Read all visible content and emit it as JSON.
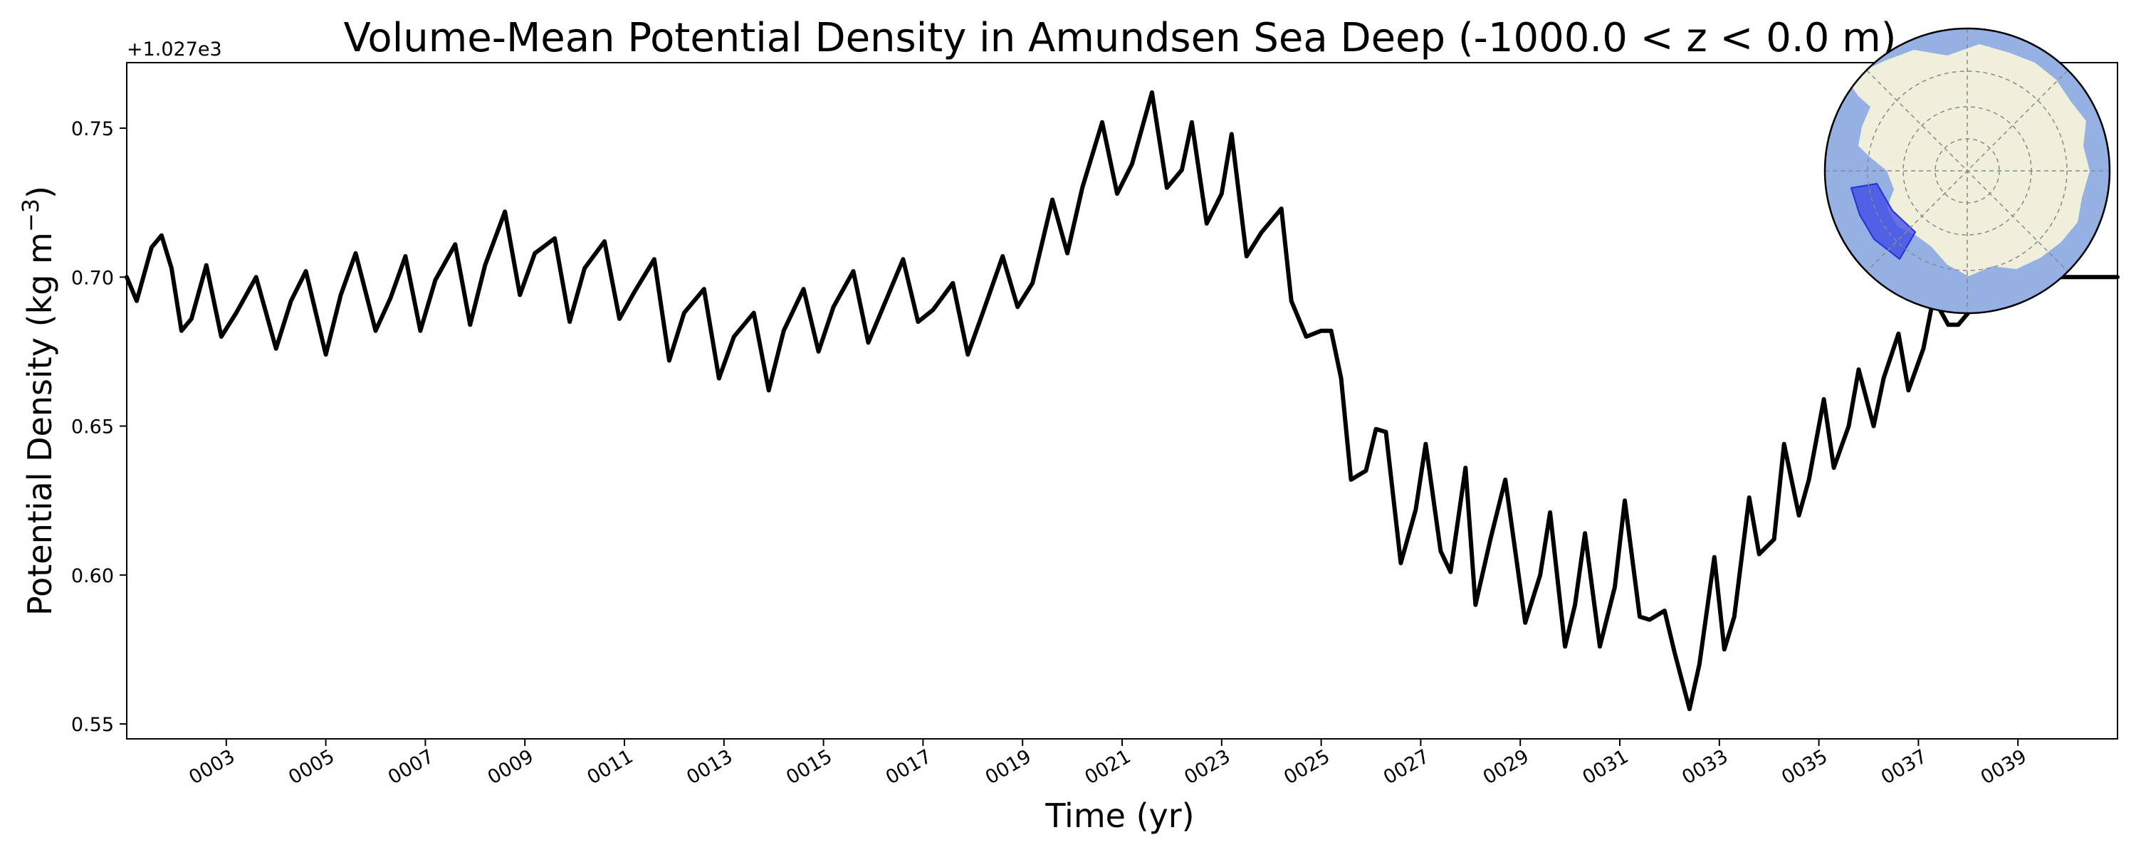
{
  "chart_data": {
    "type": "line",
    "title": "Volume-Mean Potential Density in Amundsen Sea Deep (-1000.0 < z < 0.0 m)",
    "xlabel": "Time (yr)",
    "ylabel_base": "Potential Density (kg m",
    "ylabel_exponent": "−3",
    "ylabel_close": ")",
    "y_offset_label": "+1.027e3",
    "xlim": [
      1.0,
      41.0
    ],
    "ylim": [
      0.545,
      0.772
    ],
    "x_ticks": [
      {
        "value": 3,
        "label": "0003"
      },
      {
        "value": 5,
        "label": "0005"
      },
      {
        "value": 7,
        "label": "0007"
      },
      {
        "value": 9,
        "label": "0009"
      },
      {
        "value": 11,
        "label": "0011"
      },
      {
        "value": 13,
        "label": "0013"
      },
      {
        "value": 15,
        "label": "0015"
      },
      {
        "value": 17,
        "label": "0017"
      },
      {
        "value": 19,
        "label": "0019"
      },
      {
        "value": 21,
        "label": "0021"
      },
      {
        "value": 23,
        "label": "0023"
      },
      {
        "value": 25,
        "label": "0025"
      },
      {
        "value": 27,
        "label": "0027"
      },
      {
        "value": 29,
        "label": "0029"
      },
      {
        "value": 31,
        "label": "0031"
      },
      {
        "value": 33,
        "label": "0033"
      },
      {
        "value": 35,
        "label": "0035"
      },
      {
        "value": 37,
        "label": "0037"
      },
      {
        "value": 39,
        "label": "0039"
      }
    ],
    "y_ticks": [
      {
        "value": 0.55,
        "label": "0.55"
      },
      {
        "value": 0.6,
        "label": "0.60"
      },
      {
        "value": 0.65,
        "label": "0.65"
      },
      {
        "value": 0.7,
        "label": "0.70"
      },
      {
        "value": 0.75,
        "label": "0.75"
      }
    ],
    "grid": false,
    "line_color": "#000000",
    "series": [
      {
        "x": [
          1.0,
          1.2,
          1.5,
          1.7,
          1.9,
          2.1,
          2.3,
          2.6,
          2.9,
          3.2,
          3.6,
          4.0,
          4.3,
          4.6,
          5.0,
          5.3,
          5.6,
          6.0,
          6.3,
          6.6,
          6.9,
          7.2,
          7.6,
          7.9,
          8.2,
          8.6,
          8.9,
          9.2,
          9.6,
          9.9,
          10.2,
          10.6,
          10.9,
          11.2,
          11.6,
          11.9,
          12.2,
          12.6,
          12.9,
          13.2,
          13.6,
          13.9,
          14.2,
          14.6,
          14.9,
          15.2,
          15.6,
          15.9,
          16.2,
          16.6,
          16.9,
          17.2,
          17.6,
          17.9,
          18.2,
          18.6,
          18.9,
          19.2,
          19.6,
          19.9,
          20.2,
          20.6,
          20.9,
          21.2,
          21.6,
          21.9,
          22.2,
          22.4,
          22.7,
          23.0,
          23.2,
          23.5,
          23.8,
          24.2,
          24.4,
          24.7,
          25.0,
          25.2,
          25.4,
          25.6,
          25.9,
          26.1,
          26.3,
          26.6,
          26.9,
          27.1,
          27.4,
          27.6,
          27.9,
          28.1,
          28.4,
          28.7,
          29.1,
          29.4,
          29.6,
          29.9,
          30.1,
          30.3,
          30.6,
          30.9,
          31.1,
          31.4,
          31.6,
          31.9,
          32.1,
          32.4,
          32.6,
          32.9,
          33.1,
          33.3,
          33.6,
          33.8,
          34.1,
          34.3,
          34.6,
          34.8,
          35.1,
          35.3,
          35.6,
          35.8,
          36.1,
          36.3,
          36.6,
          36.8,
          37.1,
          37.3,
          37.6,
          37.8,
          38.1,
          38.3,
          38.6,
          38.8,
          39.1,
          39.3,
          39.6,
          39.8,
          40.1,
          40.3,
          40.6,
          40.8,
          41.0
        ],
        "values": [
          0.7,
          0.692,
          0.71,
          0.714,
          0.703,
          0.682,
          0.686,
          0.704,
          0.68,
          0.688,
          0.7,
          0.676,
          0.692,
          0.702,
          0.674,
          0.694,
          0.708,
          0.682,
          0.693,
          0.707,
          0.682,
          0.699,
          0.711,
          0.684,
          0.704,
          0.722,
          0.694,
          0.708,
          0.713,
          0.685,
          0.703,
          0.712,
          0.686,
          0.695,
          0.706,
          0.672,
          0.688,
          0.696,
          0.666,
          0.68,
          0.688,
          0.662,
          0.682,
          0.696,
          0.675,
          0.69,
          0.702,
          0.678,
          0.69,
          0.706,
          0.685,
          0.689,
          0.698,
          0.674,
          0.688,
          0.707,
          0.69,
          0.698,
          0.726,
          0.708,
          0.73,
          0.752,
          0.728,
          0.738,
          0.762,
          0.73,
          0.736,
          0.752,
          0.718,
          0.728,
          0.748,
          0.707,
          0.715,
          0.723,
          0.692,
          0.68,
          0.682,
          0.682,
          0.666,
          0.632,
          0.635,
          0.649,
          0.648,
          0.604,
          0.622,
          0.644,
          0.608,
          0.601,
          0.636,
          0.59,
          0.612,
          0.632,
          0.584,
          0.6,
          0.621,
          0.576,
          0.59,
          0.614,
          0.576,
          0.596,
          0.625,
          0.586,
          0.585,
          0.588,
          0.574,
          0.555,
          0.57,
          0.606,
          0.575,
          0.586,
          0.626,
          0.607,
          0.612,
          0.644,
          0.62,
          0.632,
          0.659,
          0.636,
          0.65,
          0.669,
          0.65,
          0.666,
          0.681,
          0.662,
          0.676,
          0.693,
          0.684,
          0.684,
          0.69,
          0.693,
          0.7,
          0.702,
          0.7,
          0.7,
          0.7,
          0.7,
          0.7,
          0.7,
          0.7,
          0.7,
          0.7
        ]
      }
    ],
    "inset_map": {
      "ocean_color": "#95b1e3",
      "land_color": "#efefdb",
      "region_color": "#3a47e6"
    }
  }
}
